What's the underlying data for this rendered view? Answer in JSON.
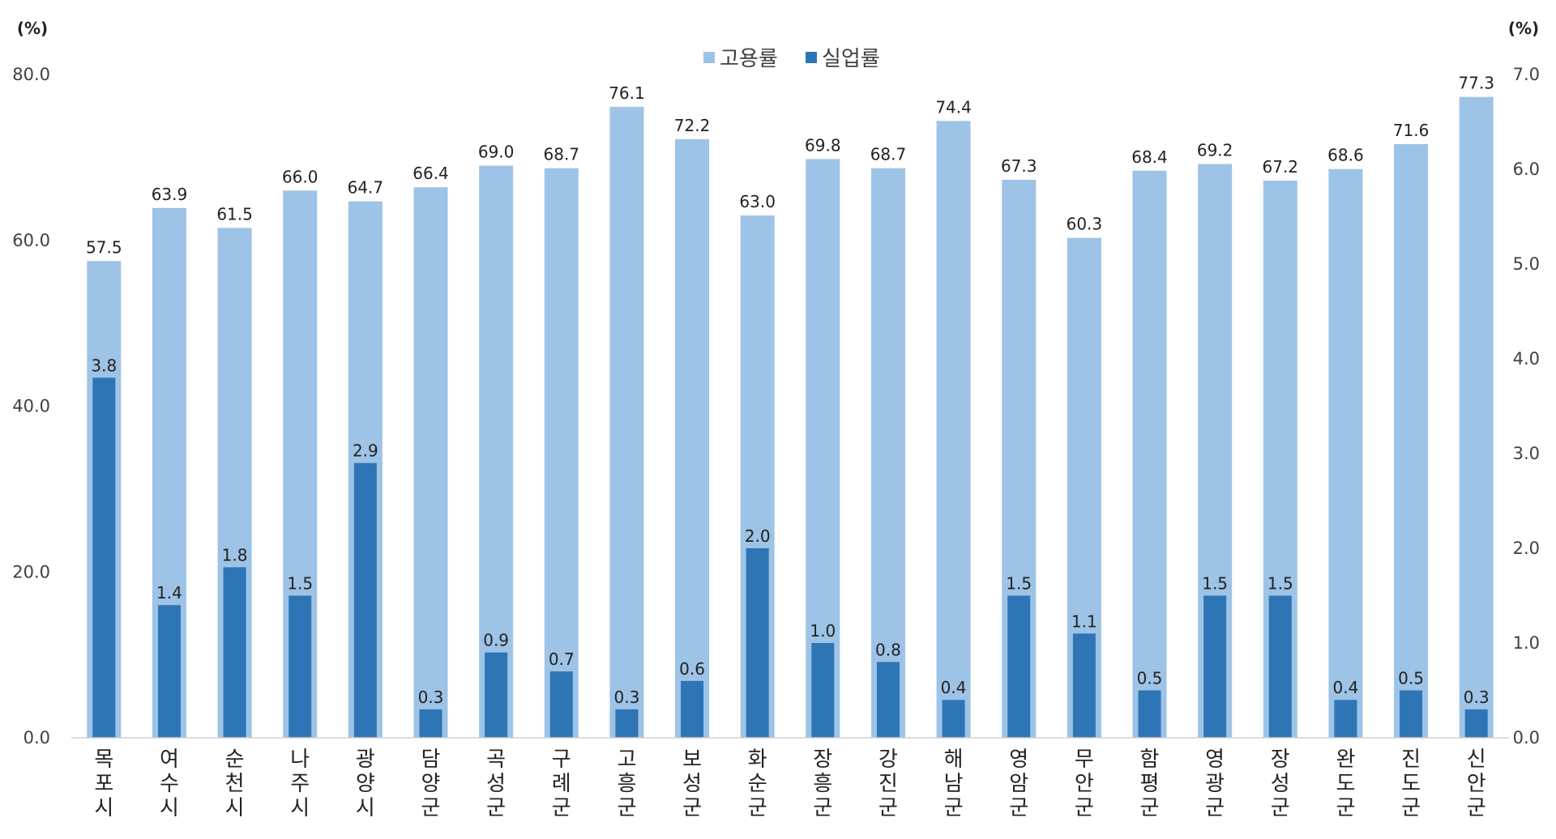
{
  "chart_data": {
    "type": "bar",
    "title": "",
    "categories": [
      "목포시",
      "여수시",
      "순천시",
      "나주시",
      "광양시",
      "담양군",
      "곡성군",
      "구례군",
      "고흥군",
      "보성군",
      "화순군",
      "장흥군",
      "강진군",
      "해남군",
      "영암군",
      "무안군",
      "함평군",
      "영광군",
      "장성군",
      "완도군",
      "진도군",
      "신안군"
    ],
    "series": [
      {
        "name": "고용률",
        "axis": "left",
        "color": "#9DC3E6",
        "values": [
          57.5,
          63.9,
          61.5,
          66.0,
          64.7,
          66.4,
          69.0,
          68.7,
          76.1,
          72.2,
          63.0,
          69.8,
          68.7,
          74.4,
          67.3,
          60.3,
          68.4,
          69.2,
          67.2,
          68.6,
          71.6,
          77.3
        ],
        "labels": [
          "57.5",
          "63.9",
          "61.5",
          "66.0",
          "64.7",
          "66.4",
          "69.0",
          "68.7",
          "76.1",
          "72.2",
          "63.0",
          "69.8",
          "68.7",
          "74.4",
          "67.3",
          "60.3",
          "68.4",
          "69.2",
          "67.2",
          "68.6",
          "71.6",
          "77.3"
        ]
      },
      {
        "name": "실업률",
        "axis": "right",
        "color": "#2E75B6",
        "values": [
          3.8,
          1.4,
          1.8,
          1.5,
          2.9,
          0.3,
          0.9,
          0.7,
          0.3,
          0.6,
          2.0,
          1.0,
          0.8,
          0.4,
          1.5,
          1.1,
          0.5,
          1.5,
          1.5,
          0.4,
          0.5,
          0.3
        ],
        "labels": [
          "3.8",
          "1.4",
          "1.8",
          "1.5",
          "2.9",
          "0.3",
          "0.9",
          "0.7",
          "0.3",
          "0.6",
          "2.0",
          "1.0",
          "0.8",
          "0.4",
          "1.5",
          "1.1",
          "0.5",
          "1.5",
          "1.5",
          "0.4",
          "0.5",
          "0.3"
        ]
      }
    ],
    "y_left": {
      "unit": "(%)",
      "range": [
        0,
        80
      ],
      "ticks": [
        "0.0",
        "20.0",
        "40.0",
        "60.0",
        "80.0"
      ]
    },
    "y_right": {
      "unit": "(%)",
      "range": [
        0,
        7
      ],
      "ticks": [
        "0.0",
        "1.0",
        "2.0",
        "3.0",
        "4.0",
        "5.0",
        "6.0",
        "7.0"
      ]
    },
    "legend_position": "top-center",
    "grid": false
  }
}
